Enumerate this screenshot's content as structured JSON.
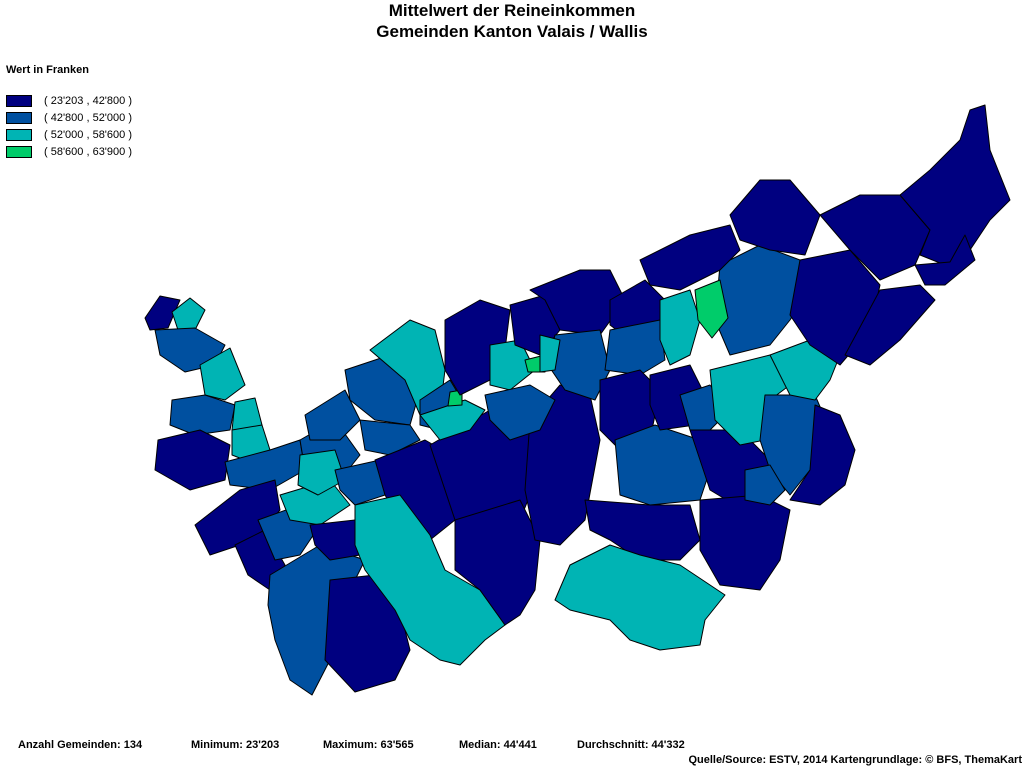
{
  "title": {
    "line1": "Mittelwert der Reineinkommen",
    "line2": "Gemeinden Kanton Valais / Wallis"
  },
  "legend": {
    "heading": "Wert in Franken",
    "classes": [
      {
        "label": "( 23'203 , 42'800 )",
        "color": "#000080"
      },
      {
        "label": "( 42'800 , 52'000 )",
        "color": "#0050a0"
      },
      {
        "label": "( 52'000 , 58'600 )",
        "color": "#00b4b4"
      },
      {
        "label": "( 58'600 , 63'900 )",
        "color": "#00cc6a"
      }
    ]
  },
  "stats": {
    "count": "Anzahl Gemeinden: 134",
    "minimum": "Minimum: 23'203",
    "maximum": "Maximum: 63'565",
    "median": "Median: 44'441",
    "mean": "Durchschnitt: 44'332"
  },
  "source": "Quelle/Source: ESTV, 2014 Kartengrundlage: © BFS, ThemaKart"
}
